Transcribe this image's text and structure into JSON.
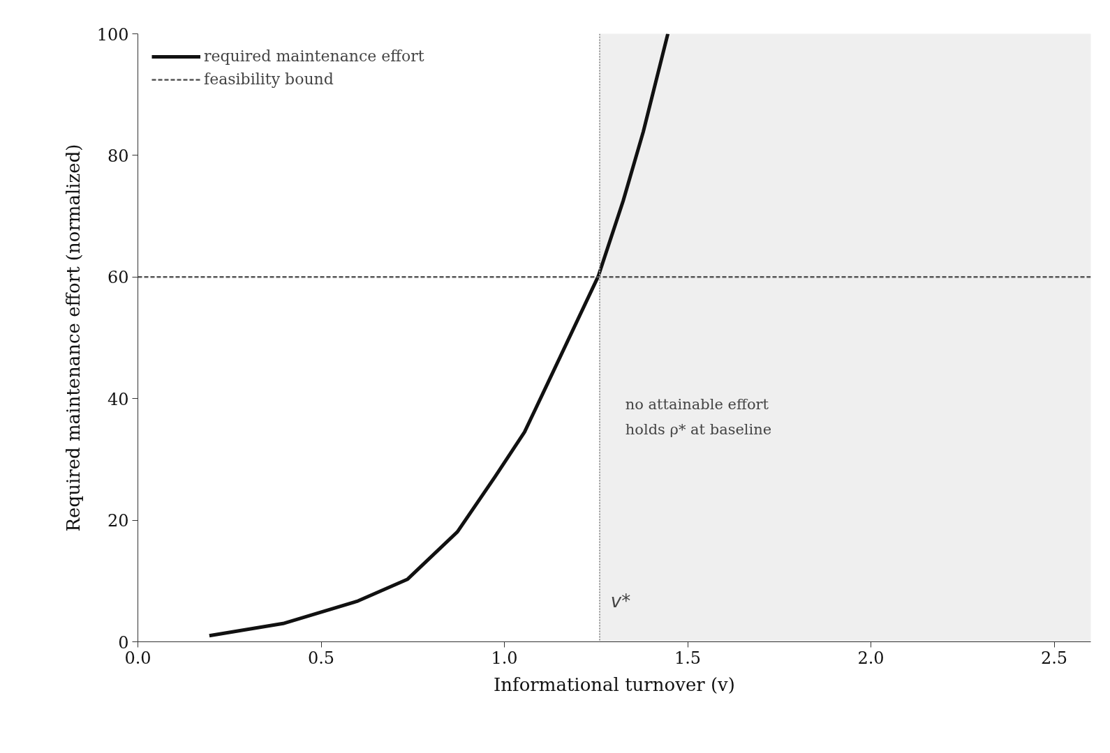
{
  "chart_data": {
    "type": "line",
    "xlabel": "Informational turnover (v)",
    "ylabel": "Required maintenance effort (normalized)",
    "x": [
      0.195,
      0.396,
      0.6,
      0.736,
      0.872,
      0.975,
      1.055,
      1.118,
      1.256,
      1.324,
      1.379,
      1.446
    ],
    "series": [
      {
        "name": "required maintenance effort",
        "color": "#111111",
        "values": [
          1.0,
          3.0,
          6.7,
          10.3,
          18.1,
          27.2,
          34.5,
          42.5,
          60.1,
          72.5,
          83.9,
          100
        ]
      }
    ],
    "xlim": [
      0,
      2.6
    ],
    "ylim": [
      0,
      100
    ],
    "xticks": [
      {
        "value": 0,
        "label": "0.0"
      },
      0.5,
      {
        "value": 1,
        "label": "1.0"
      },
      1.5,
      {
        "value": 2,
        "label": "2.0"
      },
      2.5
    ],
    "yticks": [
      0,
      20,
      40,
      60,
      80,
      100
    ],
    "ref_lines": [
      {
        "axis": "y",
        "value": 60,
        "label": "feasibility bound",
        "color": "#555555",
        "line_style": "dashed"
      },
      {
        "axis": "x",
        "value": 1.26,
        "label": "v*",
        "color": "#999999",
        "line_style": "dotted"
      }
    ],
    "bands": [
      {
        "axis": "x",
        "from": 1.26,
        "to": 2.6,
        "label": "no attainable effort\nholds ρ* at baseline",
        "color": "#efefef"
      }
    ],
    "grid": false,
    "legend": "top left",
    "line_style": "solid",
    "marker": "none"
  }
}
